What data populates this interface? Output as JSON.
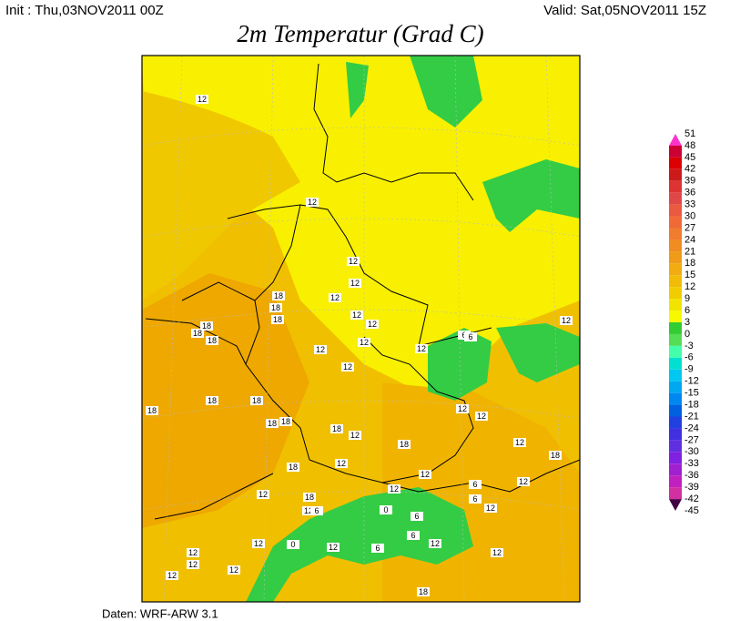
{
  "header": {
    "init": "Init : Thu,03NOV2011 00Z",
    "valid": "Valid: Sat,05NOV2011 15Z"
  },
  "title": "2m Temperatur (Grad C)",
  "map": {
    "labels": [
      "12",
      "12",
      "12",
      "12",
      "18",
      "12",
      "18",
      "18",
      "12",
      "18",
      "18",
      "18",
      "12",
      "12",
      "12",
      "12",
      "12",
      "6",
      "6",
      "12",
      "18",
      "18",
      "18",
      "18",
      "18",
      "18",
      "12",
      "18",
      "12",
      "12",
      "12",
      "18",
      "18",
      "12",
      "12",
      "12",
      "6",
      "6",
      "12",
      "12",
      "18",
      "12",
      "6",
      "0",
      "6",
      "12",
      "12",
      "0",
      "12",
      "6",
      "6",
      "12",
      "12",
      "12",
      "12",
      "12",
      "12",
      "18"
    ]
  },
  "colorbar": {
    "labels": [
      "51",
      "48",
      "45",
      "42",
      "39",
      "36",
      "33",
      "30",
      "27",
      "24",
      "21",
      "18",
      "15",
      "12",
      "9",
      "6",
      "3",
      "0",
      "-3",
      "-6",
      "-9",
      "-12",
      "-15",
      "-18",
      "-21",
      "-24",
      "-27",
      "-30",
      "-33",
      "-36",
      "-39",
      "-42",
      "-45"
    ]
  },
  "footer": "Daten: WRF-ARW 3.1"
}
